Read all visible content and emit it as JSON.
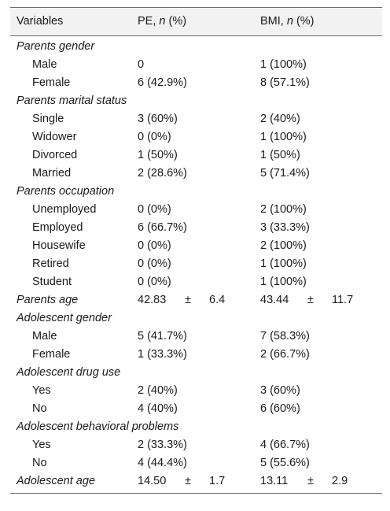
{
  "header": {
    "variables": "Variables",
    "pe_prefix": "PE, ",
    "pe_n": "n",
    "pe_suffix": " (%)",
    "bmi_prefix": "BMI, ",
    "bmi_n": "n",
    "bmi_suffix": " (%)"
  },
  "parents_gender": {
    "label": "Parents gender",
    "rows": [
      {
        "label": "Male",
        "pe": "0",
        "bmi": "1 (100%)"
      },
      {
        "label": "Female",
        "pe": "6 (42.9%)",
        "bmi": "8 (57.1%)"
      }
    ]
  },
  "parents_marital": {
    "label": "Parents marital status",
    "rows": [
      {
        "label": "Single",
        "pe": "3 (60%)",
        "bmi": "2 (40%)"
      },
      {
        "label": "Widower",
        "pe": "0 (0%)",
        "bmi": "1 (100%)"
      },
      {
        "label": "Divorced",
        "pe": "1 (50%)",
        "bmi": "1 (50%)"
      },
      {
        "label": "Married",
        "pe": "2 (28.6%)",
        "bmi": "5 (71.4%)"
      }
    ]
  },
  "parents_occupation": {
    "label": "Parents occupation",
    "rows": [
      {
        "label": "Unemployed",
        "pe": "0 (0%)",
        "bmi": "2 (100%)"
      },
      {
        "label": "Employed",
        "pe": "6 (66.7%)",
        "bmi": "3 (33.3%)"
      },
      {
        "label": "Housewife",
        "pe": "0 (0%)",
        "bmi": "2 (100%)"
      },
      {
        "label": "Retired",
        "pe": "0 (0%)",
        "bmi": "1 (100%)"
      },
      {
        "label": "Student",
        "pe": "0 (0%)",
        "bmi": "1 (100%)"
      }
    ]
  },
  "parents_age": {
    "label": "Parents age",
    "pe_mean": "42.83",
    "pe_pm": "±",
    "pe_sd": "6.4",
    "bmi_mean": "43.44",
    "bmi_pm": "±",
    "bmi_sd": "11.7"
  },
  "adolescent_gender": {
    "label": "Adolescent gender",
    "rows": [
      {
        "label": "Male",
        "pe": "5 (41.7%)",
        "bmi": "7 (58.3%)"
      },
      {
        "label": "Female",
        "pe": "1 (33.3%)",
        "bmi": "2 (66.7%)"
      }
    ]
  },
  "adolescent_drug": {
    "label": "Adolescent drug use",
    "rows": [
      {
        "label": "Yes",
        "pe": "2 (40%)",
        "bmi": "3 (60%)"
      },
      {
        "label": "No",
        "pe": "4 (40%)",
        "bmi": "6 (60%)"
      }
    ]
  },
  "adolescent_behavior": {
    "label": "Adolescent behavioral problems",
    "rows": [
      {
        "label": "Yes",
        "pe": "2 (33.3%)",
        "bmi": "4 (66.7%)"
      },
      {
        "label": "No",
        "pe": "4 (44.4%)",
        "bmi": "5 (55.6%)"
      }
    ]
  },
  "adolescent_age": {
    "label": "Adolescent age",
    "pe_mean": "14.50",
    "pe_pm": "±",
    "pe_sd": "1.7",
    "bmi_mean": "13.11",
    "bmi_pm": "±",
    "bmi_sd": "2.9"
  }
}
